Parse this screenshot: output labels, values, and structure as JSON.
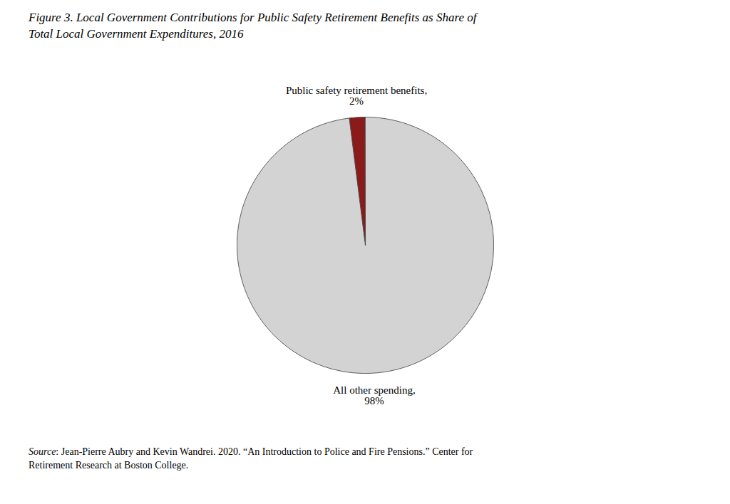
{
  "chart_data": {
    "type": "pie",
    "title": "Figure 3. Local Government Contributions for Public Safety Retirement Benefits as Share of\nTotal Local Government Expenditures, 2016",
    "categories": [
      "Public safety retirement benefits,",
      "All other spending,"
    ],
    "values": [
      2,
      98
    ],
    "value_labels": [
      "2%",
      "98%"
    ],
    "colors": [
      "#8B1A1A",
      "#D3D3D3"
    ],
    "data_labels": true,
    "source": "Source: Jean-Pierre Aubry and Kevin Wandrei. 2020. “An Introduction to Police and Fire Pensions.” Center for\nRetirement Research at Boston College."
  }
}
